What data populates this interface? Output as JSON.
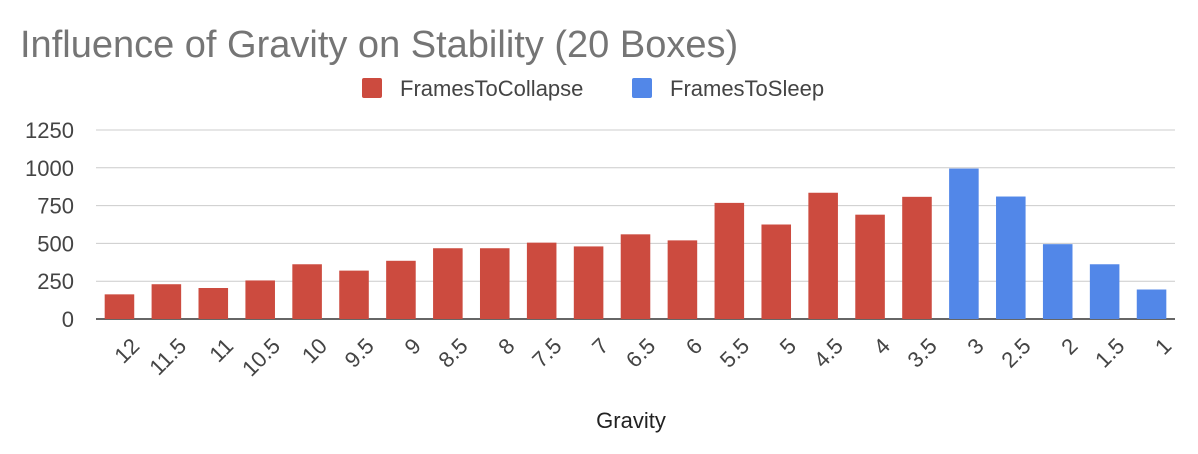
{
  "chart_data": {
    "type": "bar",
    "title": "Influence of Gravity on Stability (20 Boxes)",
    "xlabel": "Gravity",
    "ylabel": "",
    "ylim": [
      0,
      1250
    ],
    "yticks": [
      0,
      250,
      500,
      750,
      1000,
      1250
    ],
    "grid": true,
    "legend_position": "top",
    "categories": [
      "12",
      "11.5",
      "11",
      "10.5",
      "10",
      "9.5",
      "9",
      "8.5",
      "8",
      "7.5",
      "7",
      "6.5",
      "6",
      "5.5",
      "5",
      "4.5",
      "4",
      "3.5",
      "3",
      "2.5",
      "2",
      "1.5",
      "1"
    ],
    "series": [
      {
        "name": "FramesToCollapse",
        "color": "#cc4b3f",
        "values": [
          163,
          230,
          205,
          255,
          362,
          320,
          385,
          468,
          468,
          505,
          480,
          560,
          520,
          768,
          625,
          835,
          690,
          808,
          null,
          null,
          null,
          null,
          null
        ]
      },
      {
        "name": "FramesToSleep",
        "color": "#5287e8",
        "values": [
          null,
          null,
          null,
          null,
          null,
          null,
          null,
          null,
          null,
          null,
          null,
          null,
          null,
          null,
          null,
          null,
          null,
          null,
          995,
          810,
          495,
          362,
          195
        ]
      }
    ],
    "colors": {
      "title": "#757575",
      "axis_text": "#444444",
      "grid": "#cccccc",
      "baseline": "#333333"
    }
  }
}
